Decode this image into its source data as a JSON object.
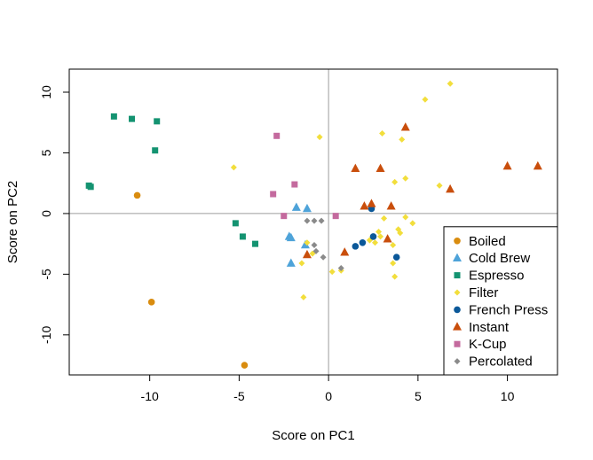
{
  "chart_data": {
    "type": "scatter",
    "title": "",
    "xlabel": "Score on PC1",
    "ylabel": "Score on PC2",
    "xlim": [
      -14.5,
      12.8
    ],
    "ylim": [
      -13.3,
      11.9
    ],
    "xticks": [
      -10,
      -5,
      0,
      5,
      10
    ],
    "yticks": [
      -10,
      -5,
      0,
      5,
      10
    ],
    "xtick_labels": [
      "-10",
      "-5",
      "0",
      "5",
      "10"
    ],
    "ytick_labels": [
      "-10",
      "-5",
      "0",
      "5",
      "10"
    ],
    "reference_lines": {
      "x": 0,
      "y": 0
    },
    "grid": false,
    "legend_position": "bottom-right",
    "series": [
      {
        "name": "Boiled",
        "marker": "circle",
        "color": "#D98C0F",
        "points": [
          [
            -10.7,
            1.5
          ],
          [
            -9.9,
            -7.3
          ],
          [
            -4.7,
            -12.5
          ]
        ]
      },
      {
        "name": "Cold Brew",
        "marker": "triangle",
        "color": "#4EA3D9",
        "points": [
          [
            -2.2,
            -1.9
          ],
          [
            -2.1,
            -2.0
          ],
          [
            -2.1,
            -4.1
          ],
          [
            -1.8,
            0.5
          ],
          [
            -1.2,
            0.4
          ],
          [
            -1.3,
            -2.6
          ]
        ]
      },
      {
        "name": "Espresso",
        "marker": "square",
        "color": "#149371",
        "points": [
          [
            -13.4,
            2.3
          ],
          [
            -13.3,
            2.2
          ],
          [
            -12.0,
            8.0
          ],
          [
            -11.0,
            7.8
          ],
          [
            -9.6,
            7.6
          ],
          [
            -9.7,
            5.2
          ],
          [
            -5.2,
            -0.8
          ],
          [
            -4.8,
            -1.9
          ],
          [
            -4.1,
            -2.5
          ]
        ]
      },
      {
        "name": "Filter",
        "marker": "diamond",
        "color": "#F2DE3C",
        "points": [
          [
            -5.3,
            3.8
          ],
          [
            -0.5,
            6.3
          ],
          [
            3.0,
            6.6
          ],
          [
            4.1,
            6.1
          ],
          [
            5.4,
            9.4
          ],
          [
            6.8,
            10.7
          ],
          [
            3.7,
            2.6
          ],
          [
            4.3,
            2.9
          ],
          [
            6.2,
            2.3
          ],
          [
            3.1,
            -0.4
          ],
          [
            4.3,
            -0.3
          ],
          [
            4.7,
            -0.8
          ],
          [
            3.9,
            -1.3
          ],
          [
            4.0,
            -1.6
          ],
          [
            2.8,
            -1.5
          ],
          [
            2.9,
            -1.9
          ],
          [
            2.3,
            -2.2
          ],
          [
            2.6,
            -2.4
          ],
          [
            3.6,
            -2.6
          ],
          [
            3.6,
            -4.1
          ],
          [
            3.7,
            -5.2
          ],
          [
            2.3,
            -2.2
          ],
          [
            -1.4,
            -6.9
          ],
          [
            -1.5,
            -4.1
          ],
          [
            -0.9,
            -3.3
          ],
          [
            0.2,
            -4.8
          ],
          [
            0.7,
            -4.7
          ],
          [
            -1.2,
            -2.4
          ]
        ]
      },
      {
        "name": "French Press",
        "marker": "circle",
        "color": "#0B5899",
        "points": [
          [
            1.5,
            -2.7
          ],
          [
            1.9,
            -2.4
          ],
          [
            2.4,
            0.4
          ],
          [
            2.5,
            -1.9
          ],
          [
            3.8,
            -3.6
          ]
        ]
      },
      {
        "name": "Instant",
        "marker": "triangle",
        "color": "#C94E0C",
        "points": [
          [
            4.3,
            7.1
          ],
          [
            1.5,
            3.7
          ],
          [
            2.9,
            3.7
          ],
          [
            3.5,
            0.6
          ],
          [
            2.4,
            0.8
          ],
          [
            2.0,
            0.6
          ],
          [
            6.8,
            2.0
          ],
          [
            10.0,
            3.9
          ],
          [
            11.7,
            3.9
          ],
          [
            3.3,
            -2.1
          ],
          [
            0.9,
            -3.2
          ],
          [
            -1.2,
            -3.4
          ]
        ]
      },
      {
        "name": "K-Cup",
        "marker": "square",
        "color": "#C46A9E",
        "points": [
          [
            -2.9,
            6.4
          ],
          [
            -3.1,
            1.6
          ],
          [
            -1.9,
            2.4
          ],
          [
            -2.5,
            -0.2
          ],
          [
            0.4,
            -0.2
          ]
        ]
      },
      {
        "name": "Percolated",
        "marker": "diamond",
        "color": "#8A8A8A",
        "points": [
          [
            -1.2,
            -0.6
          ],
          [
            -0.8,
            -0.6
          ],
          [
            -0.4,
            -0.6
          ],
          [
            -0.8,
            -2.6
          ],
          [
            -0.7,
            -3.1
          ],
          [
            -0.3,
            -3.6
          ],
          [
            0.7,
            -4.5
          ]
        ]
      }
    ]
  }
}
